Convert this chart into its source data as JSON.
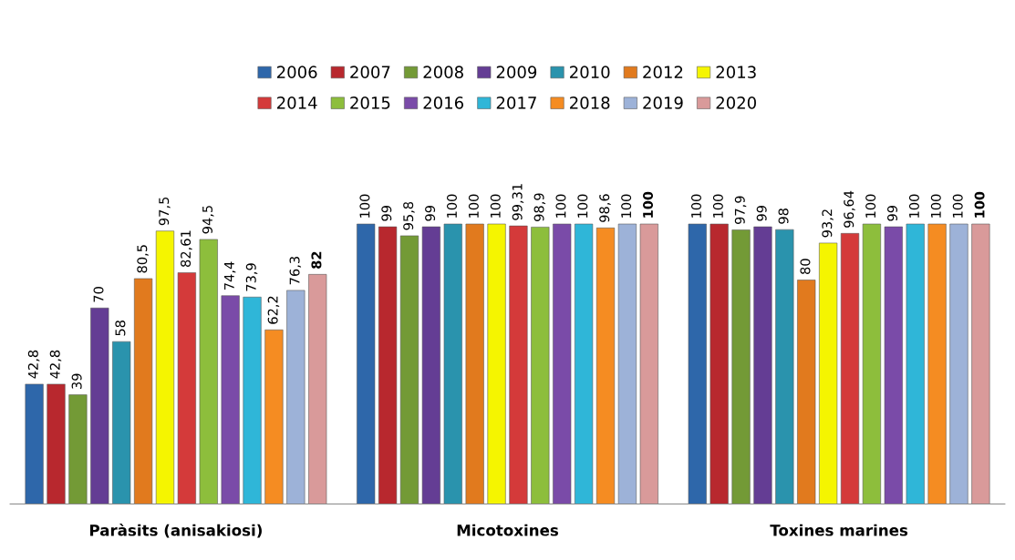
{
  "chart_data": {
    "type": "bar",
    "categories": [
      "Paràsits (anisakiosi)",
      "Micotoxines",
      "Toxines marines"
    ],
    "legend": "top",
    "series": [
      {
        "name": "2006",
        "color": "#2e67aa",
        "values": [
          42.8,
          100,
          100
        ],
        "value_labels": [
          "42,8",
          "100",
          "100"
        ]
      },
      {
        "name": "2007",
        "color": "#b8282e",
        "values": [
          42.8,
          99,
          100
        ],
        "value_labels": [
          "42,8",
          "99",
          "100"
        ]
      },
      {
        "name": "2008",
        "color": "#739a36",
        "values": [
          39,
          95.8,
          97.9
        ],
        "value_labels": [
          "39",
          "95,8",
          "97,9"
        ]
      },
      {
        "name": "2009",
        "color": "#643d94",
        "values": [
          70,
          99,
          99
        ],
        "value_labels": [
          "70",
          "99",
          "99"
        ]
      },
      {
        "name": "2010",
        "color": "#2a93ad",
        "values": [
          58,
          100,
          98
        ],
        "value_labels": [
          "58",
          "100",
          "98"
        ]
      },
      {
        "name": "2012",
        "color": "#e17a1e",
        "values": [
          80.5,
          100,
          80
        ],
        "value_labels": [
          "80,5",
          "100",
          "80"
        ]
      },
      {
        "name": "2013",
        "color": "#f5f500",
        "values": [
          97.5,
          100,
          93.2
        ],
        "value_labels": [
          "97,5",
          "100",
          "93,2"
        ]
      },
      {
        "name": "2014",
        "color": "#d43a3a",
        "values": [
          82.61,
          99.31,
          96.64
        ],
        "value_labels": [
          "82,61",
          "99,31",
          "96,64"
        ]
      },
      {
        "name": "2015",
        "color": "#8dbe3c",
        "values": [
          94.5,
          98.9,
          100
        ],
        "value_labels": [
          "94,5",
          "98,9",
          "100"
        ]
      },
      {
        "name": "2016",
        "color": "#7a4ba8",
        "values": [
          74.4,
          100,
          99
        ],
        "value_labels": [
          "74,4",
          "100",
          "99"
        ]
      },
      {
        "name": "2017",
        "color": "#2fb6d8",
        "values": [
          73.9,
          100,
          100
        ],
        "value_labels": [
          "73,9",
          "100",
          "100"
        ]
      },
      {
        "name": "2018",
        "color": "#f58c22",
        "values": [
          62.2,
          98.6,
          100
        ],
        "value_labels": [
          "62,2",
          "98,6",
          "100"
        ]
      },
      {
        "name": "2019",
        "color": "#9db2d8",
        "values": [
          76.3,
          100,
          100
        ],
        "value_labels": [
          "76,3",
          "100",
          "100"
        ]
      },
      {
        "name": "2020",
        "color": "#d99a9a",
        "values": [
          82,
          100,
          100
        ],
        "value_labels": [
          "82",
          "100",
          "100"
        ]
      }
    ]
  }
}
